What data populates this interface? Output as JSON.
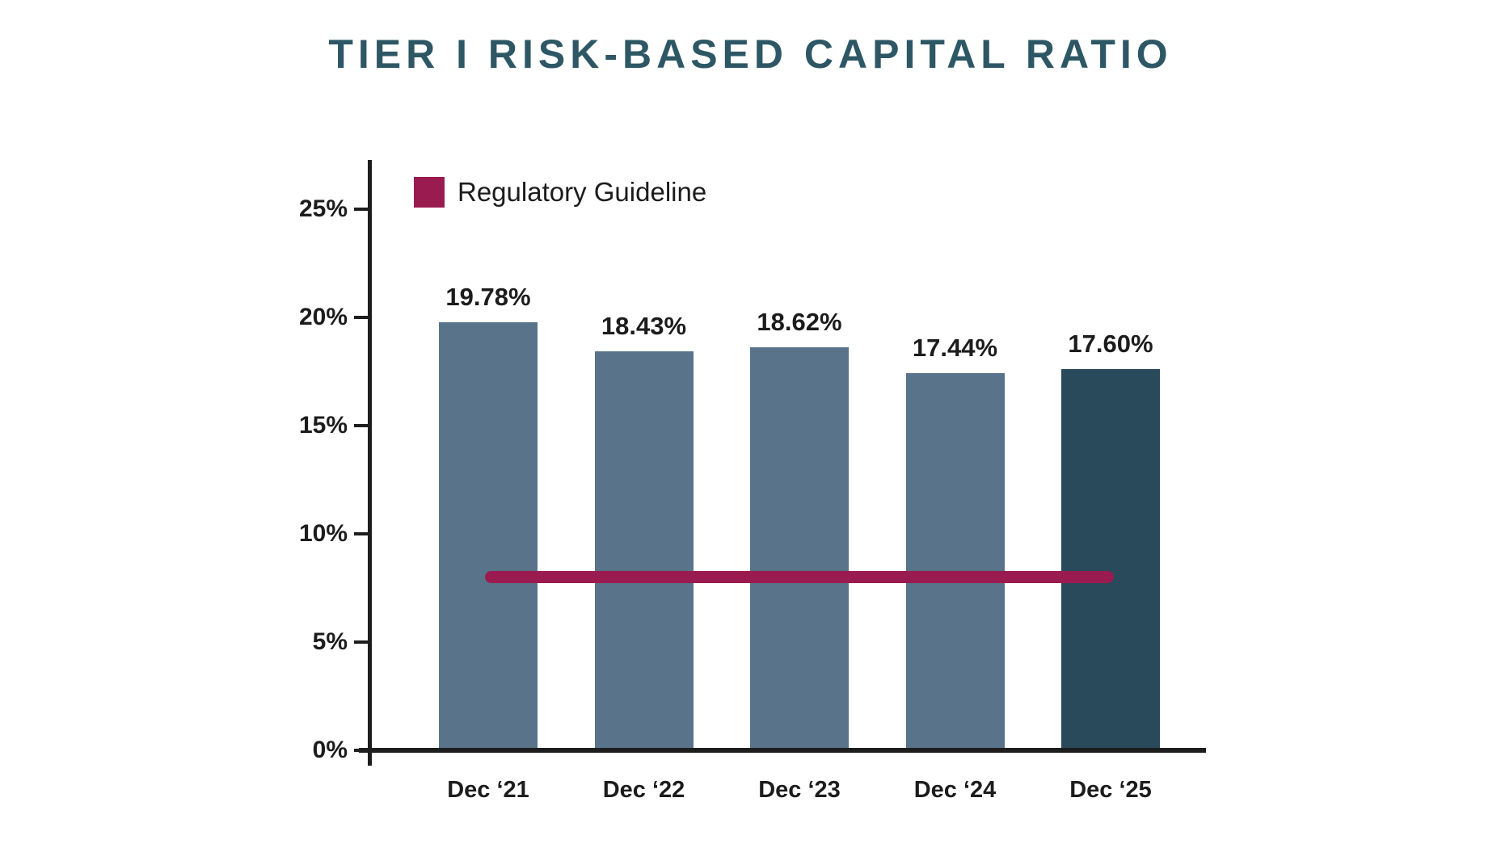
{
  "title": "TIER I RISK-BASED CAPITAL RATIO",
  "colors": {
    "title": "#2e5765",
    "text": "#1c1c1c",
    "axis": "#1d1d1d",
    "bar": "#59748a",
    "bar_highlight": "#294a5b",
    "guideline": "#9a1b50"
  },
  "chart_data": {
    "type": "bar",
    "title": "TIER I RISK-BASED CAPITAL RATIO",
    "categories": [
      "Dec ‘21",
      "Dec ‘22",
      "Dec ‘23",
      "Dec ‘24",
      "Dec ‘25"
    ],
    "values": [
      19.78,
      18.43,
      18.62,
      17.44,
      17.6
    ],
    "value_labels": [
      "19.78%",
      "18.43%",
      "18.62%",
      "17.44%",
      "17.60%"
    ],
    "highlight_index": 4,
    "guideline": {
      "label": "Regulatory Guideline",
      "value": 8,
      "color": "#9a1b50"
    },
    "y_axis": {
      "tick_values": [
        0,
        5,
        10,
        15,
        20,
        25
      ],
      "tick_labels": [
        "0%",
        "5%",
        "10%",
        "15%",
        "20%",
        "25%"
      ],
      "range": [
        0,
        27.3
      ]
    },
    "xlabel": "",
    "ylabel": "",
    "grid": false,
    "legend_position": "top-left-inside"
  }
}
